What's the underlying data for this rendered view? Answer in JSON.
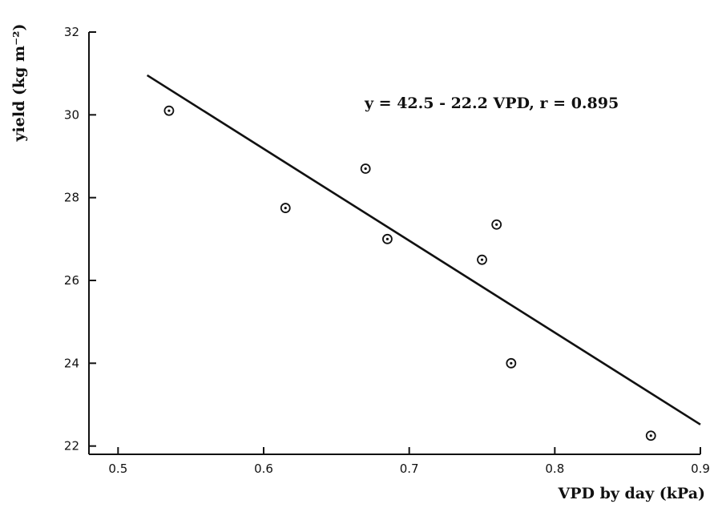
{
  "chart_data": {
    "type": "scatter",
    "xlabel": "VPD by day (kPa)",
    "ylabel": "yield (kg m⁻²)",
    "xlim": [
      0.48,
      0.9
    ],
    "ylim": [
      21.8,
      32
    ],
    "x_ticks": [
      0.5,
      0.6,
      0.7,
      0.8,
      0.9
    ],
    "y_ticks": [
      22,
      24,
      26,
      28,
      30,
      32
    ],
    "x_tick_labels": [
      "0.5",
      "0.6",
      "0.7",
      "0.8",
      "0.9"
    ],
    "y_tick_labels": [
      "22",
      "24",
      "26",
      "28",
      "30",
      "32"
    ],
    "grid": false,
    "points": [
      {
        "x": 0.535,
        "y": 30.1
      },
      {
        "x": 0.615,
        "y": 27.75
      },
      {
        "x": 0.67,
        "y": 28.7
      },
      {
        "x": 0.685,
        "y": 27.0
      },
      {
        "x": 0.75,
        "y": 26.5
      },
      {
        "x": 0.76,
        "y": 27.35
      },
      {
        "x": 0.77,
        "y": 24.0
      },
      {
        "x": 0.866,
        "y": 22.25
      }
    ],
    "regression": {
      "intercept": 42.5,
      "slope": -22.2,
      "x_range": [
        0.52,
        0.9
      ]
    },
    "annotation": "y = 42.5 - 22.2 VPD, r = 0.895"
  }
}
